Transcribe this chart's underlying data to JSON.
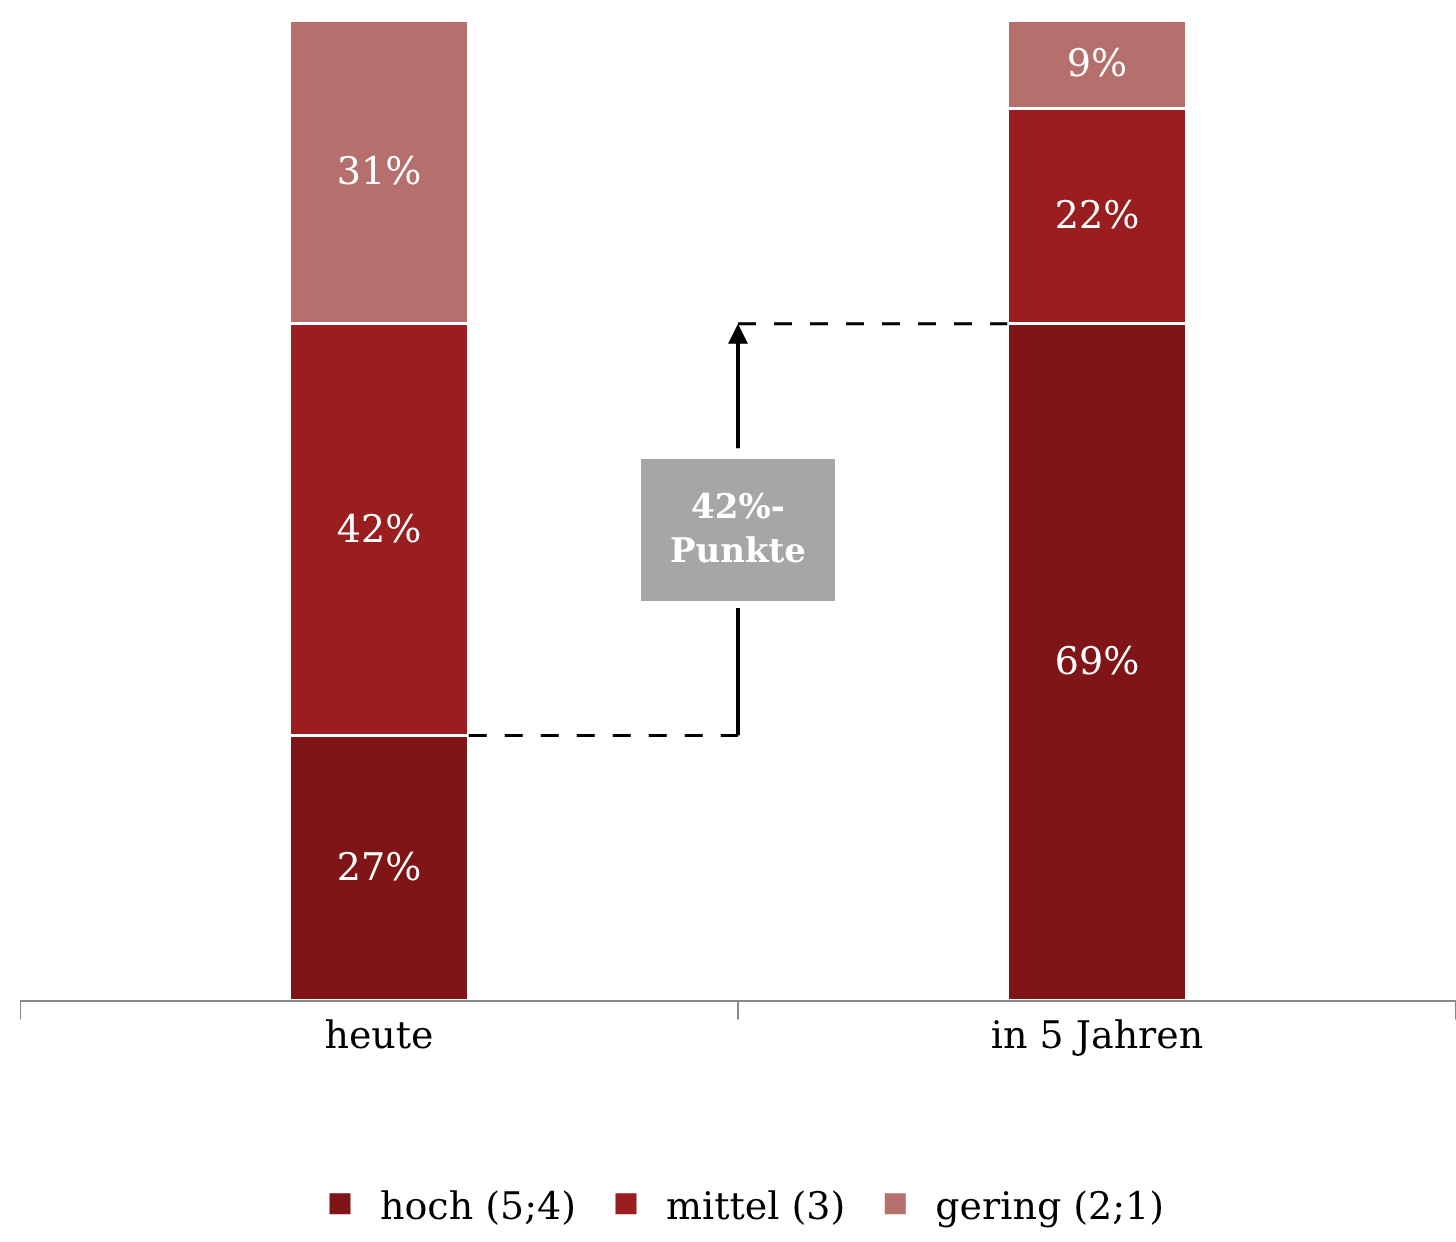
{
  "chart_data": {
    "type": "bar",
    "stacked": true,
    "legend": "bottom",
    "ref_lines": [
      {
        "axis": "y",
        "value": 27,
        "line_style": "dashed",
        "color": "#000000"
      },
      {
        "axis": "y",
        "value": 69,
        "line_style": "dashed",
        "color": "#000000"
      }
    ],
    "categories": [
      "heute",
      "in 5 Jahren"
    ],
    "series": [
      {
        "name": "hoch (5;4)",
        "color": "#7f1517",
        "values": [
          27,
          69
        ],
        "value_labels": [
          "27%",
          "69%"
        ]
      },
      {
        "name": "mittel (3)",
        "color": "#9a1d1f",
        "values": [
          42,
          22
        ],
        "value_labels": [
          "42%",
          "22%"
        ]
      },
      {
        "name": "gering (2;1)",
        "color": "#b5706e",
        "values": [
          31,
          9
        ],
        "value_labels": [
          "31%",
          "9%"
        ]
      }
    ],
    "annotations": [
      "42%-\nPunkte"
    ]
  }
}
